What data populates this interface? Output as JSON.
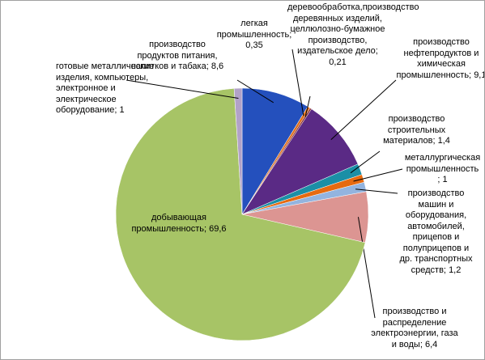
{
  "chart_data": {
    "type": "pie",
    "categories": [
      "производство продуктов питания, напитков и табака;",
      "легкая промышленность;",
      "деревообработка,производство деревянных изделий, целлюлозно-бумажное производство, издательское дело;",
      "производство нефтепродуктов и химическая промышленность;",
      "производство строительных материалов;",
      "металлургическая промышленность ;",
      "производство машин и оборудования, автомобилей, прицепов и полуприцепов и др. транспортных средств;",
      "производство и распределение электроэнергии, газа и воды;",
      "добывающая промышленность;",
      "готовые металлические изделия, компьютеры, электронное и электрическое оборудование;"
    ],
    "values": [
      8.6,
      0.35,
      0.21,
      9.1,
      1.4,
      1,
      1.2,
      6.4,
      69.6,
      1
    ],
    "value_labels": [
      "8,6",
      "0,35",
      "0,21",
      "9,1",
      "1,4",
      "1",
      "1,2",
      "6,4",
      "69,6",
      "1"
    ],
    "colors": [
      "#2450bd",
      "#e0701c",
      "#8c2f2f",
      "#5a2a85",
      "#1b8fa6",
      "#e66a10",
      "#93b4df",
      "#dc9592",
      "#a7c466",
      "#b2a2c8"
    ]
  }
}
